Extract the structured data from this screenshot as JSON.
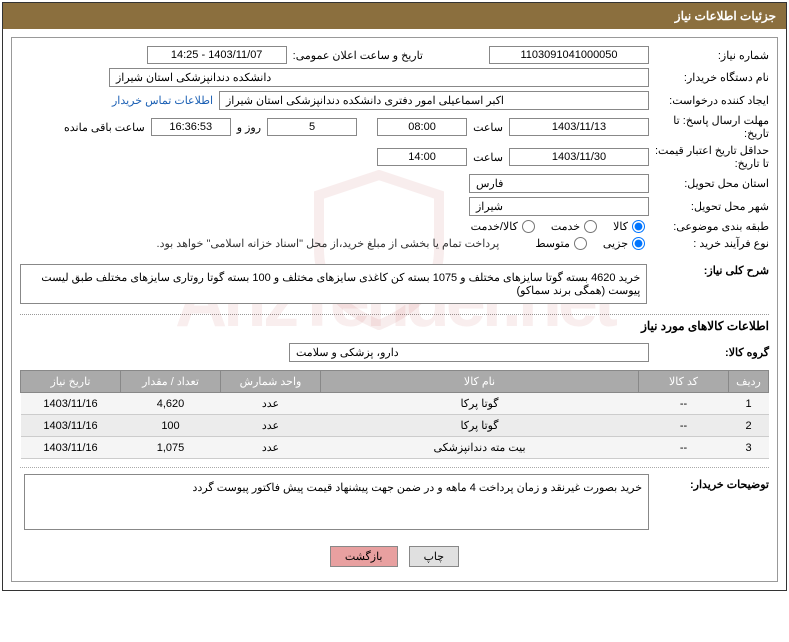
{
  "title_bar": "جزئیات اطلاعات نیاز",
  "fields": {
    "need_no_label": "شماره نیاز:",
    "need_no": "1103091041000050",
    "announce_label": "تاریخ و ساعت اعلان عمومی:",
    "announce_value": "1403/11/07 - 14:25",
    "buyer_org_label": "نام دستگاه خریدار:",
    "buyer_org": "دانشکده دندانپزشکی استان شیراز",
    "requester_label": "ایجاد کننده درخواست:",
    "requester": "اکبر  اسماعیلی امور دفتری دانشکده دندانپزشکی استان شیراز",
    "contact_link": "اطلاعات تماس خریدار",
    "deadline_label": "مهلت ارسال پاسخ: تا تاریخ:",
    "deadline_date": "1403/11/13",
    "time_label": "ساعت",
    "deadline_time": "08:00",
    "days_count": "5",
    "days_and": "روز و",
    "remaining_time": "16:36:53",
    "remaining_label": "ساعت باقی مانده",
    "validity_label": "حداقل تاریخ اعتبار قیمت: تا تاریخ:",
    "validity_date": "1403/11/30",
    "validity_time": "14:00",
    "delivery_province_label": "استان محل تحویل:",
    "delivery_province": "فارس",
    "delivery_city_label": "شهر محل تحویل:",
    "delivery_city": "شیراز",
    "category_label": "طبقه بندی موضوعی:",
    "cat_goods": "کالا",
    "cat_service": "خدمت",
    "cat_both": "کالا/خدمت",
    "process_label": "نوع فرآیند خرید :",
    "proc_small": "جزیی",
    "proc_medium": "متوسط",
    "payment_note": "پرداخت تمام یا بخشی از مبلغ خرید،از محل \"اسناد خزانه اسلامی\" خواهد بود.",
    "general_desc_label": "شرح کلی نیاز:",
    "general_desc": "خرید 4620 بسته گوتا سایزهای مختلف و 1075 بسته کن کاغذی سایزهای مختلف و 100 بسته گوتا روتاری سایزهای مختلف طبق لیست پیوست (همگی برند سماکو)",
    "section_items": "اطلاعات کالاهای مورد نیاز",
    "group_label": "گروه کالا:",
    "group_value": "دارو، پزشکی و سلامت",
    "buyer_notes_label": "توضیحات خریدار:",
    "buyer_notes": "خرید بصورت غیرنقد و زمان پرداخت 4 ماهه و در ضمن جهت پیشنهاد قیمت پیش فاکتور پیوست گردد",
    "btn_print": "چاپ",
    "btn_back": "بازگشت"
  },
  "table": {
    "headers": {
      "row": "ردیف",
      "code": "کد کالا",
      "name": "نام کالا",
      "unit": "واحد شمارش",
      "qty": "تعداد / مقدار",
      "date": "تاریخ نیاز"
    },
    "rows": [
      {
        "idx": "1",
        "code": "--",
        "name": "گوتا پرکا",
        "unit": "عدد",
        "qty": "4,620",
        "date": "1403/11/16"
      },
      {
        "idx": "2",
        "code": "--",
        "name": "گوتا پرکا",
        "unit": "عدد",
        "qty": "100",
        "date": "1403/11/16"
      },
      {
        "idx": "3",
        "code": "--",
        "name": "بیت مته دندانپزشکی",
        "unit": "عدد",
        "qty": "1,075",
        "date": "1403/11/16"
      }
    ]
  },
  "watermark": "ArizTender.net"
}
